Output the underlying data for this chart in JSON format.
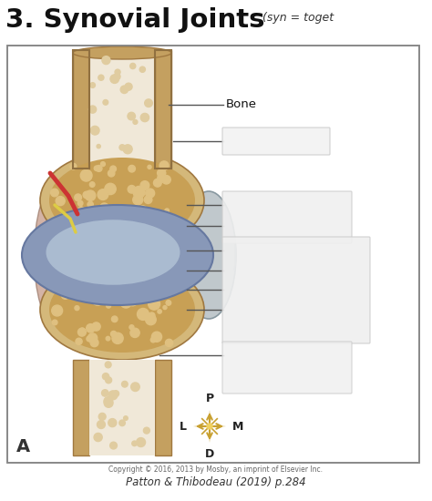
{
  "title_main": "3. Synovial Joints",
  "title_sub": "(syn = toget",
  "footer1": "Copyright © 2016, 2013 by Mosby, an imprint of Elsevier Inc.",
  "footer2": "Patton & Thibodeau (2019) p.284",
  "label_bone": "Bone",
  "label_a": "A",
  "bg_color": "#ffffff",
  "box_bg": "#ffffff",
  "box_border": "#aaaaaa",
  "diagram_border": "#888888",
  "line_color": "#555555",
  "answer_box_color": "#e8e8e8",
  "answer_box_border": "#cccccc",
  "bone_tan": "#d4b87a",
  "bone_dark": "#c4a060",
  "bone_light": "#e8d4a0",
  "spongy_color": "#c8a055",
  "spongy_hole": "#dfc080",
  "cartilage_color": "#b8ccd8",
  "synovial_blue": "#8898b8",
  "synovial_light": "#aabbd0",
  "capsule_gray": "#9aacb8",
  "muscle_red": "#cc3333",
  "nerve_yellow": "#ddcc44",
  "tissue_pink": "#c8a090",
  "compass_gold": "#c8a030",
  "figsize": [
    4.74,
    5.5
  ],
  "dpi": 100
}
